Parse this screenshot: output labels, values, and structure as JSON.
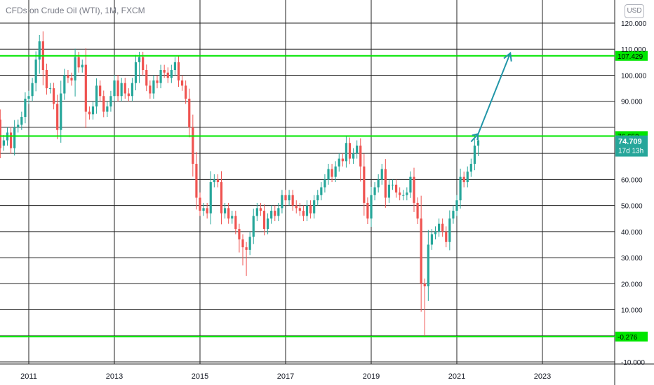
{
  "header": {
    "title": "CFDs on Crude Oil (WTI), 1M, FXCM",
    "currency": "USD"
  },
  "colors": {
    "up": "#26a69a",
    "down": "#ef5350",
    "level": "#00e600",
    "arrow": "#2196a8",
    "grid": "#222222"
  },
  "chart_data": {
    "type": "candlestick",
    "title": "CFDs on Crude Oil (WTI), 1M, FXCM",
    "xlabel": "",
    "ylabel": "",
    "x_ticks": [
      "2011",
      "2013",
      "2015",
      "2017",
      "2019",
      "2021",
      "2023"
    ],
    "y_ticks": [
      "120.000",
      "110.000",
      "100.000",
      "90.000",
      "80.000",
      "70.000",
      "60.000",
      "50.000",
      "40.000",
      "30.000",
      "20.000",
      "10.000",
      "0.000",
      "-10.000"
    ],
    "ylim": [
      -10,
      120
    ],
    "xlim": [
      "2010-05",
      "2024-06"
    ],
    "grid": true,
    "horizontal_levels": [
      {
        "value": 107.429,
        "label": "107.429"
      },
      {
        "value": 76.653,
        "label": "76.653"
      },
      {
        "value": -0.276,
        "label": "-0.276"
      }
    ],
    "last_price": {
      "value": 74.709,
      "label": "74.709",
      "countdown": "17d 13h"
    },
    "projection": [
      {
        "date": "2021-05",
        "value": 74.5
      },
      {
        "date": "2021-07",
        "value": 77.5
      },
      {
        "date": "2022-04",
        "value": 108.5
      }
    ],
    "candles_approx": [
      {
        "d": "2010-05",
        "o": 83,
        "c": 72
      },
      {
        "d": "2010-06",
        "o": 73,
        "c": 75
      },
      {
        "d": "2010-07",
        "o": 75,
        "c": 78
      },
      {
        "d": "2010-08",
        "o": 78,
        "c": 72
      },
      {
        "d": "2010-09",
        "o": 72,
        "c": 80
      },
      {
        "d": "2010-10",
        "o": 80,
        "c": 81
      },
      {
        "d": "2010-11",
        "o": 81,
        "c": 84
      },
      {
        "d": "2010-12",
        "o": 84,
        "c": 91
      },
      {
        "d": "2011-01",
        "o": 91,
        "c": 92
      },
      {
        "d": "2011-02",
        "o": 92,
        "c": 97
      },
      {
        "d": "2011-03",
        "o": 97,
        "c": 106
      },
      {
        "d": "2011-04",
        "o": 106,
        "c": 113
      },
      {
        "d": "2011-05",
        "o": 113,
        "c": 102
      },
      {
        "d": "2011-06",
        "o": 102,
        "c": 95
      },
      {
        "d": "2011-07",
        "o": 95,
        "c": 95
      },
      {
        "d": "2011-08",
        "o": 95,
        "c": 89
      },
      {
        "d": "2011-09",
        "o": 89,
        "c": 79
      },
      {
        "d": "2011-10",
        "o": 79,
        "c": 93
      },
      {
        "d": "2011-11",
        "o": 93,
        "c": 100
      },
      {
        "d": "2011-12",
        "o": 100,
        "c": 99
      },
      {
        "d": "2012-01",
        "o": 99,
        "c": 98
      },
      {
        "d": "2012-02",
        "o": 98,
        "c": 107
      },
      {
        "d": "2012-03",
        "o": 107,
        "c": 103
      },
      {
        "d": "2012-04",
        "o": 103,
        "c": 104
      },
      {
        "d": "2012-05",
        "o": 104,
        "c": 86
      },
      {
        "d": "2012-06",
        "o": 86,
        "c": 85
      },
      {
        "d": "2012-07",
        "o": 85,
        "c": 88
      },
      {
        "d": "2012-08",
        "o": 88,
        "c": 96
      },
      {
        "d": "2012-09",
        "o": 96,
        "c": 92
      },
      {
        "d": "2012-10",
        "o": 92,
        "c": 86
      },
      {
        "d": "2012-11",
        "o": 86,
        "c": 88
      },
      {
        "d": "2012-12",
        "o": 88,
        "c": 92
      },
      {
        "d": "2013-01",
        "o": 92,
        "c": 98
      },
      {
        "d": "2013-02",
        "o": 98,
        "c": 92
      },
      {
        "d": "2013-03",
        "o": 92,
        "c": 97
      },
      {
        "d": "2013-04",
        "o": 97,
        "c": 93
      },
      {
        "d": "2013-05",
        "o": 93,
        "c": 92
      },
      {
        "d": "2013-06",
        "o": 92,
        "c": 97
      },
      {
        "d": "2013-07",
        "o": 97,
        "c": 105
      },
      {
        "d": "2013-08",
        "o": 105,
        "c": 107
      },
      {
        "d": "2013-09",
        "o": 107,
        "c": 102
      },
      {
        "d": "2013-10",
        "o": 102,
        "c": 96
      },
      {
        "d": "2013-11",
        "o": 96,
        "c": 93
      },
      {
        "d": "2013-12",
        "o": 93,
        "c": 98
      },
      {
        "d": "2014-01",
        "o": 98,
        "c": 97
      },
      {
        "d": "2014-02",
        "o": 97,
        "c": 102
      },
      {
        "d": "2014-03",
        "o": 102,
        "c": 101
      },
      {
        "d": "2014-04",
        "o": 101,
        "c": 99
      },
      {
        "d": "2014-05",
        "o": 99,
        "c": 102
      },
      {
        "d": "2014-06",
        "o": 102,
        "c": 105
      },
      {
        "d": "2014-07",
        "o": 105,
        "c": 98
      },
      {
        "d": "2014-08",
        "o": 98,
        "c": 96
      },
      {
        "d": "2014-09",
        "o": 96,
        "c": 91
      },
      {
        "d": "2014-10",
        "o": 91,
        "c": 80
      },
      {
        "d": "2014-11",
        "o": 80,
        "c": 66
      },
      {
        "d": "2014-12",
        "o": 66,
        "c": 53
      },
      {
        "d": "2015-01",
        "o": 53,
        "c": 48
      },
      {
        "d": "2015-02",
        "o": 48,
        "c": 49
      },
      {
        "d": "2015-03",
        "o": 49,
        "c": 47
      },
      {
        "d": "2015-04",
        "o": 47,
        "c": 59
      },
      {
        "d": "2015-05",
        "o": 59,
        "c": 60
      },
      {
        "d": "2015-06",
        "o": 60,
        "c": 59
      },
      {
        "d": "2015-07",
        "o": 59,
        "c": 47
      },
      {
        "d": "2015-08",
        "o": 47,
        "c": 49
      },
      {
        "d": "2015-09",
        "o": 49,
        "c": 45
      },
      {
        "d": "2015-10",
        "o": 45,
        "c": 46
      },
      {
        "d": "2015-11",
        "o": 46,
        "c": 41
      },
      {
        "d": "2015-12",
        "o": 41,
        "c": 37
      },
      {
        "d": "2016-01",
        "o": 37,
        "c": 34
      },
      {
        "d": "2016-02",
        "o": 34,
        "c": 33
      },
      {
        "d": "2016-03",
        "o": 33,
        "c": 38
      },
      {
        "d": "2016-04",
        "o": 38,
        "c": 46
      },
      {
        "d": "2016-05",
        "o": 46,
        "c": 49
      },
      {
        "d": "2016-06",
        "o": 49,
        "c": 48
      },
      {
        "d": "2016-07",
        "o": 48,
        "c": 41
      },
      {
        "d": "2016-08",
        "o": 41,
        "c": 45
      },
      {
        "d": "2016-09",
        "o": 45,
        "c": 48
      },
      {
        "d": "2016-10",
        "o": 48,
        "c": 46
      },
      {
        "d": "2016-11",
        "o": 46,
        "c": 49
      },
      {
        "d": "2016-12",
        "o": 49,
        "c": 54
      },
      {
        "d": "2017-01",
        "o": 54,
        "c": 52
      },
      {
        "d": "2017-02",
        "o": 52,
        "c": 54
      },
      {
        "d": "2017-03",
        "o": 54,
        "c": 50
      },
      {
        "d": "2017-04",
        "o": 50,
        "c": 49
      },
      {
        "d": "2017-05",
        "o": 49,
        "c": 48
      },
      {
        "d": "2017-06",
        "o": 48,
        "c": 46
      },
      {
        "d": "2017-07",
        "o": 46,
        "c": 50
      },
      {
        "d": "2017-08",
        "o": 50,
        "c": 47
      },
      {
        "d": "2017-09",
        "o": 47,
        "c": 52
      },
      {
        "d": "2017-10",
        "o": 52,
        "c": 54
      },
      {
        "d": "2017-11",
        "o": 54,
        "c": 57
      },
      {
        "d": "2017-12",
        "o": 57,
        "c": 60
      },
      {
        "d": "2018-01",
        "o": 60,
        "c": 64
      },
      {
        "d": "2018-02",
        "o": 64,
        "c": 61
      },
      {
        "d": "2018-03",
        "o": 61,
        "c": 65
      },
      {
        "d": "2018-04",
        "o": 65,
        "c": 68
      },
      {
        "d": "2018-05",
        "o": 68,
        "c": 67
      },
      {
        "d": "2018-06",
        "o": 67,
        "c": 74
      },
      {
        "d": "2018-07",
        "o": 74,
        "c": 68
      },
      {
        "d": "2018-08",
        "o": 68,
        "c": 70
      },
      {
        "d": "2018-09",
        "o": 70,
        "c": 73
      },
      {
        "d": "2018-10",
        "o": 73,
        "c": 65
      },
      {
        "d": "2018-11",
        "o": 65,
        "c": 51
      },
      {
        "d": "2018-12",
        "o": 51,
        "c": 45
      },
      {
        "d": "2019-01",
        "o": 45,
        "c": 54
      },
      {
        "d": "2019-02",
        "o": 54,
        "c": 57
      },
      {
        "d": "2019-03",
        "o": 57,
        "c": 60
      },
      {
        "d": "2019-04",
        "o": 60,
        "c": 64
      },
      {
        "d": "2019-05",
        "o": 64,
        "c": 53
      },
      {
        "d": "2019-06",
        "o": 53,
        "c": 58
      },
      {
        "d": "2019-07",
        "o": 58,
        "c": 58
      },
      {
        "d": "2019-08",
        "o": 58,
        "c": 55
      },
      {
        "d": "2019-09",
        "o": 55,
        "c": 54
      },
      {
        "d": "2019-10",
        "o": 54,
        "c": 54
      },
      {
        "d": "2019-11",
        "o": 54,
        "c": 55
      },
      {
        "d": "2019-12",
        "o": 55,
        "c": 61
      },
      {
        "d": "2020-01",
        "o": 61,
        "c": 51
      },
      {
        "d": "2020-02",
        "o": 51,
        "c": 45
      },
      {
        "d": "2020-03",
        "o": 45,
        "c": 20
      },
      {
        "d": "2020-04",
        "o": 20,
        "c": 19
      },
      {
        "d": "2020-05",
        "o": 19,
        "c": 35
      },
      {
        "d": "2020-06",
        "o": 35,
        "c": 39
      },
      {
        "d": "2020-07",
        "o": 39,
        "c": 40
      },
      {
        "d": "2020-08",
        "o": 40,
        "c": 43
      },
      {
        "d": "2020-09",
        "o": 43,
        "c": 40
      },
      {
        "d": "2020-10",
        "o": 40,
        "c": 36
      },
      {
        "d": "2020-11",
        "o": 36,
        "c": 45
      },
      {
        "d": "2020-12",
        "o": 45,
        "c": 48
      },
      {
        "d": "2021-01",
        "o": 48,
        "c": 52
      },
      {
        "d": "2021-02",
        "o": 52,
        "c": 61
      },
      {
        "d": "2021-03",
        "o": 61,
        "c": 59
      },
      {
        "d": "2021-04",
        "o": 59,
        "c": 63
      },
      {
        "d": "2021-05",
        "o": 63,
        "c": 66
      },
      {
        "d": "2021-06",
        "o": 66,
        "c": 73
      },
      {
        "d": "2021-07",
        "o": 73,
        "c": 75
      }
    ]
  }
}
